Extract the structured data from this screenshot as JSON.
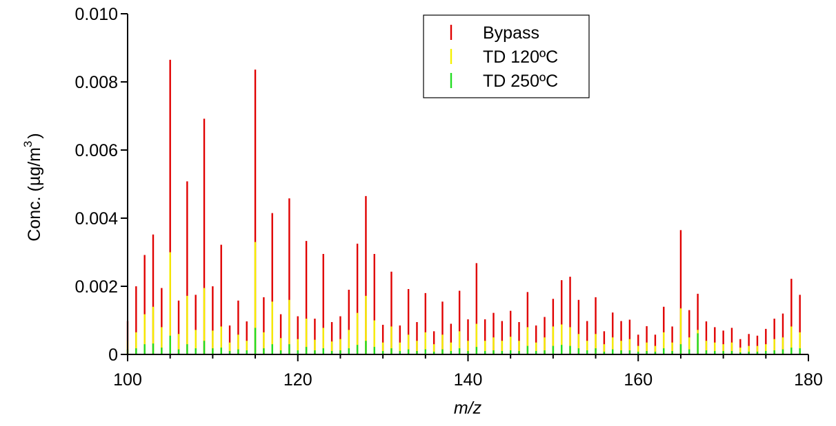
{
  "chart_data": {
    "type": "bar",
    "xlabel": "m/z",
    "ylabel": "Conc. (µg/m",
    "ylabel_superscript": "3",
    "ylabel_close": ")",
    "xlim": [
      100,
      180
    ],
    "ylim": [
      0,
      0.01
    ],
    "x_ticks": [
      100,
      120,
      140,
      160,
      180
    ],
    "x_tick_labels": [
      "100",
      "120",
      "140",
      "160",
      "180"
    ],
    "y_ticks": [
      0,
      0.002,
      0.004,
      0.006,
      0.008,
      0.01
    ],
    "y_tick_labels": [
      "0",
      "0.002",
      "0.004",
      "0.006",
      "0.008",
      "0.010"
    ],
    "grid": false,
    "legend_position": "top-right",
    "x": [
      100,
      101,
      102,
      103,
      104,
      105,
      106,
      107,
      108,
      109,
      110,
      111,
      112,
      113,
      114,
      115,
      116,
      117,
      118,
      119,
      120,
      121,
      122,
      123,
      124,
      125,
      126,
      127,
      128,
      129,
      130,
      131,
      132,
      133,
      134,
      135,
      136,
      137,
      138,
      139,
      140,
      141,
      142,
      143,
      144,
      145,
      146,
      147,
      148,
      149,
      150,
      151,
      152,
      153,
      154,
      155,
      156,
      157,
      158,
      159,
      160,
      161,
      162,
      163,
      164,
      165,
      166,
      167,
      168,
      169,
      170,
      171,
      172,
      173,
      174,
      175,
      176,
      177,
      178,
      179
    ],
    "series": [
      {
        "name": "Bypass",
        "color": "#e00000",
        "values": [
          0.00098,
          0.002,
          0.00292,
          0.00352,
          0.00195,
          0.00865,
          0.00158,
          0.00508,
          0.00175,
          0.00692,
          0.002,
          0.00322,
          0.00085,
          0.00158,
          0.00097,
          0.00836,
          0.00168,
          0.00415,
          0.00118,
          0.00458,
          0.00112,
          0.00333,
          0.00105,
          0.00295,
          0.00095,
          0.00112,
          0.0019,
          0.00325,
          0.00465,
          0.00295,
          0.00087,
          0.00243,
          0.00085,
          0.00192,
          0.00095,
          0.0018,
          0.00068,
          0.00155,
          0.0009,
          0.00187,
          0.00103,
          0.00268,
          0.00103,
          0.00122,
          0.00098,
          0.00128,
          0.00095,
          0.00183,
          0.00085,
          0.0011,
          0.00163,
          0.00218,
          0.00228,
          0.0016,
          0.00098,
          0.00168,
          0.00068,
          0.00123,
          0.00098,
          0.00102,
          0.00058,
          0.00083,
          0.00058,
          0.0014,
          0.00082,
          0.00365,
          0.0013,
          0.00178,
          0.00097,
          0.0008,
          0.0007,
          0.00078,
          0.00045,
          0.0006,
          0.00055,
          0.00075,
          0.00105,
          0.0012,
          0.00222,
          0.00175
        ]
      },
      {
        "name": "TD 120ºC",
        "color": "#f5f000",
        "values": [
          0.0004,
          0.00065,
          0.00118,
          0.0014,
          0.0008,
          0.003,
          0.0006,
          0.00172,
          0.00072,
          0.00195,
          0.0007,
          0.00082,
          0.00035,
          0.00058,
          0.0004,
          0.0033,
          0.00065,
          0.00155,
          0.00048,
          0.0016,
          0.00045,
          0.00105,
          0.00043,
          0.00078,
          0.00038,
          0.00045,
          0.00072,
          0.00122,
          0.00172,
          0.001,
          0.00035,
          0.00082,
          0.00035,
          0.00058,
          0.0004,
          0.00065,
          0.0003,
          0.00058,
          0.00035,
          0.00068,
          0.0004,
          0.0009,
          0.0004,
          0.0005,
          0.0004,
          0.00052,
          0.0004,
          0.0008,
          0.00035,
          0.0005,
          0.00082,
          0.00088,
          0.0008,
          0.0006,
          0.0004,
          0.0006,
          0.0003,
          0.0005,
          0.0004,
          0.00045,
          0.00025,
          0.00035,
          0.00025,
          0.00065,
          0.00035,
          0.00135,
          0.0005,
          0.00072,
          0.0004,
          0.00035,
          0.0003,
          0.00035,
          0.0002,
          0.00025,
          0.00025,
          0.0003,
          0.00045,
          0.0005,
          0.00082,
          0.00065
        ]
      },
      {
        "name": "TD 250ºC",
        "color": "#22dd22",
        "values": [
          0.00015,
          0.00018,
          0.0003,
          0.00032,
          0.0002,
          0.00055,
          0.00015,
          0.0003,
          0.00018,
          0.0004,
          0.00018,
          0.0002,
          0.0001,
          0.00015,
          0.00012,
          0.00078,
          0.00018,
          0.0003,
          0.00012,
          0.0003,
          0.00012,
          0.00022,
          0.00012,
          0.00018,
          0.0001,
          0.00012,
          0.00018,
          0.00028,
          0.0004,
          0.00022,
          0.0001,
          0.00018,
          0.0001,
          0.00015,
          0.0001,
          0.00015,
          8e-05,
          0.00015,
          0.0001,
          0.00018,
          0.0001,
          0.00022,
          0.0001,
          0.00012,
          0.0001,
          0.00012,
          0.0001,
          0.00025,
          0.0001,
          0.00012,
          0.00025,
          0.00028,
          0.00025,
          0.00018,
          0.00012,
          0.00018,
          8e-05,
          0.00015,
          0.00012,
          0.00012,
          8e-05,
          0.0001,
          8e-05,
          0.00018,
          0.0001,
          0.0003,
          0.00015,
          0.00062,
          0.00012,
          0.0001,
          0.0001,
          0.0001,
          6e-05,
          8e-05,
          8e-05,
          0.0001,
          0.00012,
          0.00015,
          0.0002,
          0.00018
        ]
      }
    ]
  }
}
